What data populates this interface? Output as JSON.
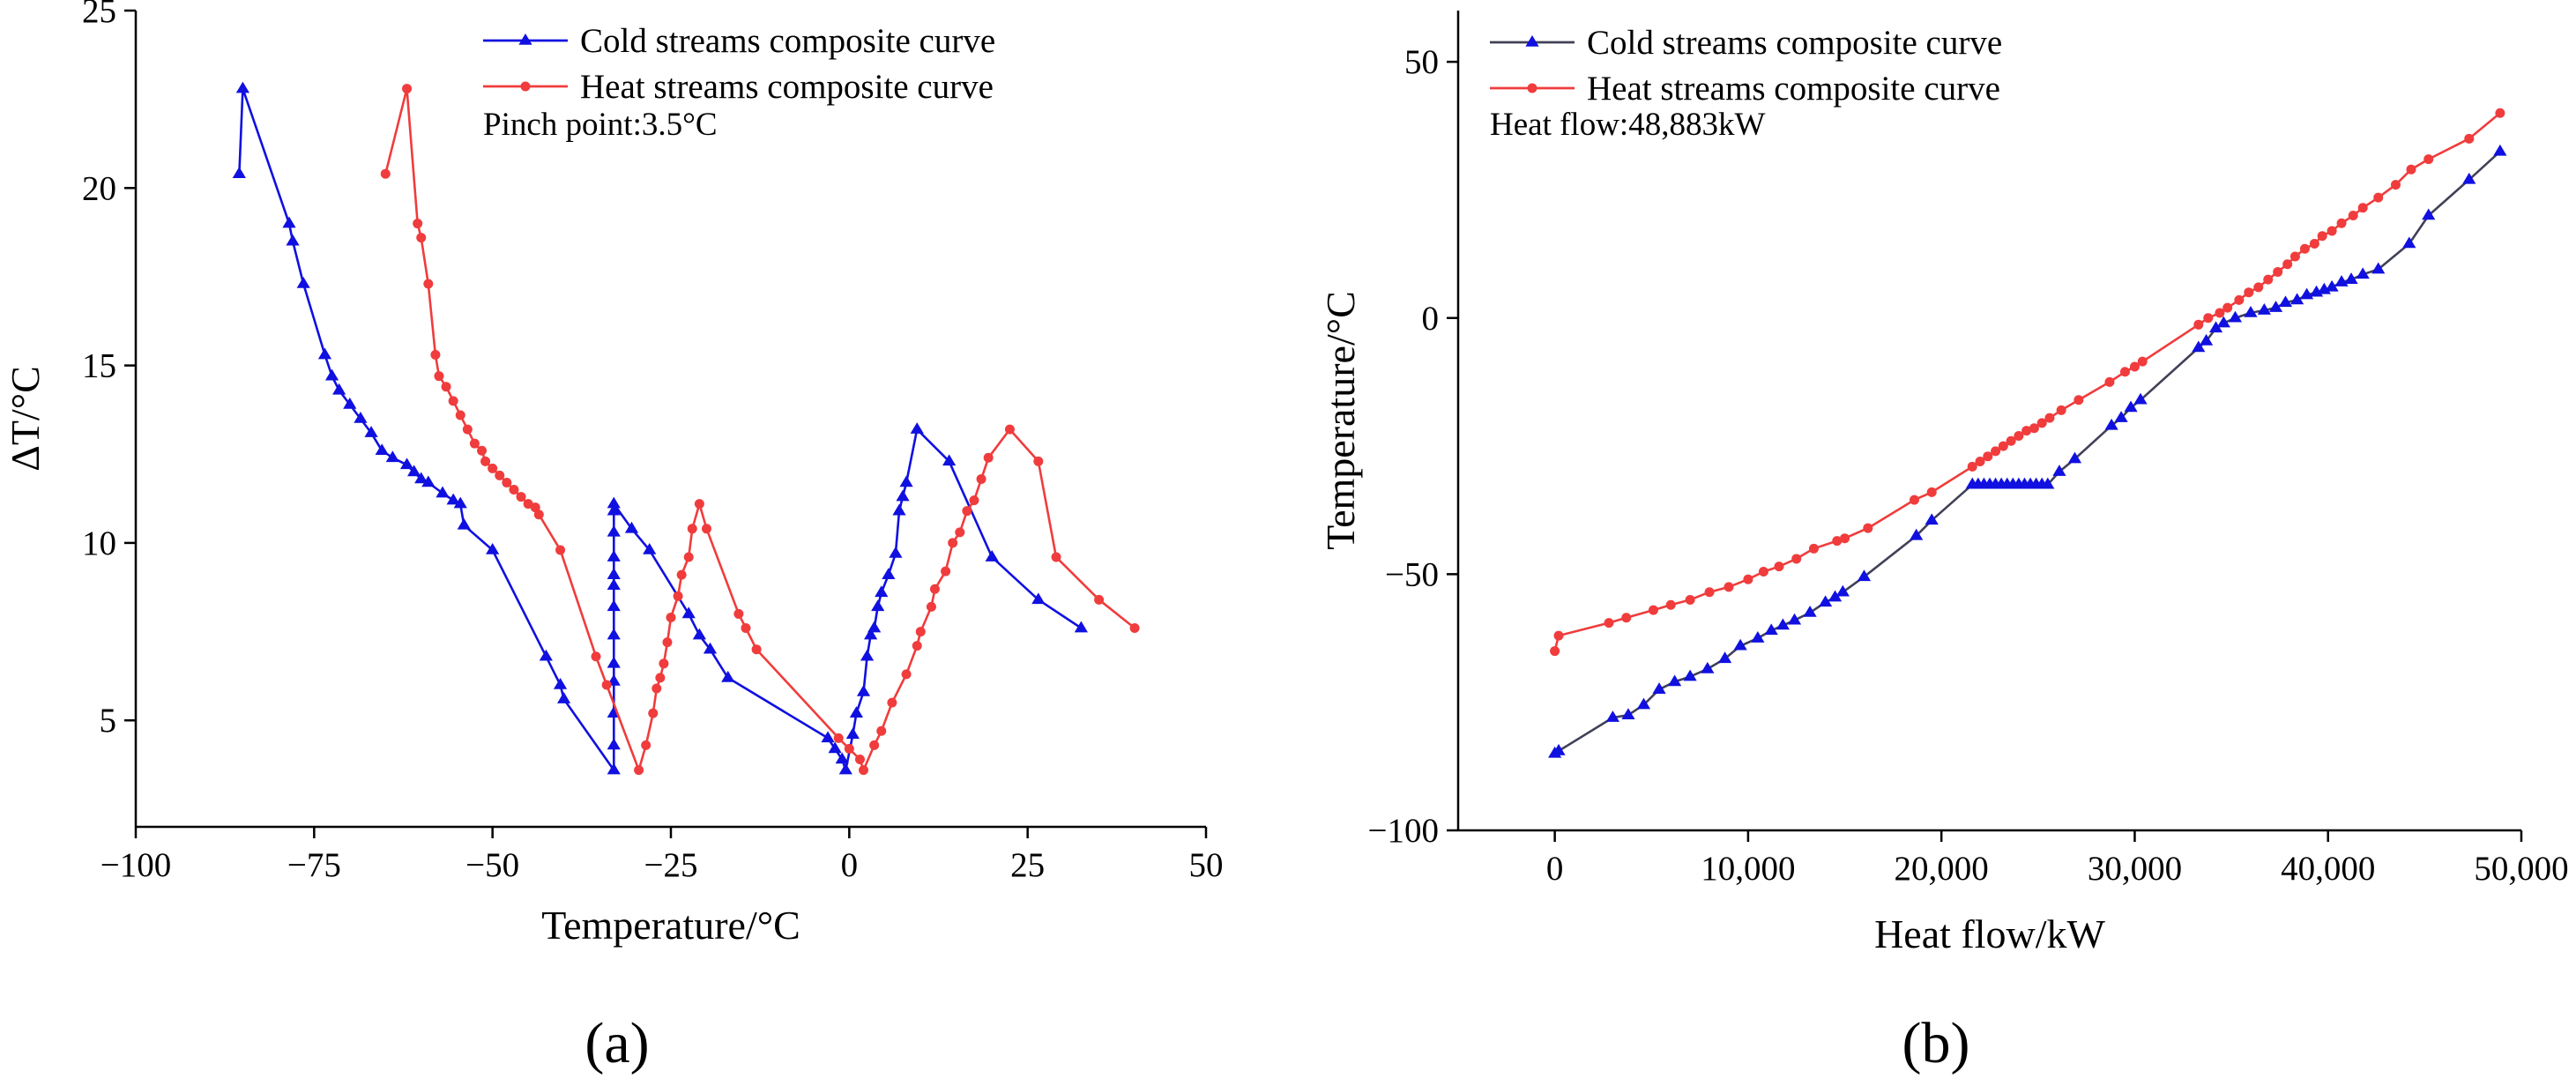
{
  "figure": {
    "label_a": "(a)",
    "label_b": "(b)"
  },
  "colors": {
    "cold": "#1010e0",
    "heat": "#f03c3c",
    "cold_b_line": "#404058"
  },
  "chart_data": [
    {
      "id": "a",
      "type": "line",
      "xlabel": "Temperature/°C",
      "ylabel": "ΔT/°C",
      "xlim": [
        -100,
        50
      ],
      "ylim": [
        2,
        25
      ],
      "xticks": [
        -100,
        -75,
        -50,
        -25,
        0,
        25,
        50
      ],
      "xtick_labels": [
        "−100",
        "−75",
        "−50",
        "−25",
        "0",
        "25",
        "50"
      ],
      "yticks": [
        5,
        10,
        15,
        20,
        25
      ],
      "ytick_labels": [
        "5",
        "10",
        "15",
        "20",
        "25"
      ],
      "legend": "top-center",
      "annotation": "Pinch point:3.5°C",
      "series": [
        {
          "name": "Cold streams composite curve",
          "marker": "triangle",
          "color": "#1010e0",
          "x": [
            -85.5,
            -85,
            -78.5,
            -78,
            -76.5,
            -73.5,
            -72.5,
            -71.5,
            -70,
            -68.5,
            -67,
            -65.5,
            -64,
            -62,
            -61,
            -60,
            -59,
            -57,
            -55.5,
            -54.5,
            -54,
            -50,
            -42.5,
            -40.5,
            -40,
            -33,
            -33,
            -33,
            -33,
            -33,
            -33,
            -33,
            -33,
            -33,
            -33,
            -33,
            -33,
            -33,
            -30.5,
            -28,
            -22.5,
            -21,
            -19.5,
            -17,
            -3,
            -2,
            -1,
            -0.5,
            0.5,
            1,
            2,
            2.5,
            3,
            3.5,
            4,
            4.5,
            5.5,
            6.5,
            7,
            7.5,
            8,
            9.5,
            14,
            20,
            26.5,
            32.5
          ],
          "y": [
            20.4,
            22.8,
            19,
            18.5,
            17.3,
            15.3,
            14.7,
            14.3,
            13.9,
            13.5,
            13.1,
            12.6,
            12.4,
            12.2,
            12,
            11.8,
            11.7,
            11.4,
            11.2,
            11.1,
            10.5,
            9.8,
            6.8,
            6,
            5.6,
            3.6,
            4.3,
            5.2,
            6.1,
            6.6,
            7.4,
            8.2,
            8.8,
            9.1,
            9.6,
            10.3,
            10.9,
            11.1,
            10.4,
            9.8,
            8,
            7.4,
            7,
            6.2,
            4.5,
            4.2,
            3.9,
            3.6,
            4.6,
            5.2,
            5.8,
            6.8,
            7.4,
            7.6,
            8.2,
            8.6,
            9.1,
            9.7,
            10.9,
            11.3,
            11.7,
            13.2,
            12.3,
            9.6,
            8.4,
            7.6
          ]
        },
        {
          "name": "Heat streams composite curve",
          "marker": "circle",
          "color": "#f03c3c",
          "x": [
            -65,
            -62,
            -60.5,
            -60,
            -59,
            -58,
            -57.5,
            -56.5,
            -55.5,
            -54.5,
            -53.5,
            -52.5,
            -51.5,
            -51,
            -50,
            -49,
            -48,
            -47,
            -46,
            -45,
            -44,
            -43.5,
            -40.5,
            -35.5,
            -34,
            -29.5,
            -28.5,
            -27.5,
            -27,
            -26.5,
            -26,
            -25.5,
            -25,
            -24,
            -23.5,
            -22.5,
            -22,
            -21,
            -20,
            -15.5,
            -14.5,
            -13,
            -1.5,
            0,
            1.5,
            2,
            3.5,
            4.5,
            6,
            8,
            9.5,
            10,
            11.5,
            12,
            13.5,
            14.5,
            15.5,
            16.5,
            17.5,
            18.5,
            19.5,
            22.5,
            26.5,
            29,
            35,
            40
          ],
          "y": [
            20.4,
            22.8,
            19,
            18.6,
            17.3,
            15.3,
            14.7,
            14.4,
            14,
            13.6,
            13.2,
            12.8,
            12.6,
            12.3,
            12.1,
            11.9,
            11.7,
            11.5,
            11.3,
            11.1,
            11,
            10.8,
            9.8,
            6.8,
            6,
            3.6,
            4.3,
            5.2,
            5.9,
            6.2,
            6.6,
            7.2,
            7.9,
            8.5,
            9.1,
            9.6,
            10.4,
            11.1,
            10.4,
            8,
            7.6,
            7,
            4.5,
            4.2,
            3.9,
            3.6,
            4.3,
            4.7,
            5.5,
            6.3,
            7.1,
            7.5,
            8.2,
            8.7,
            9.2,
            10,
            10.3,
            10.9,
            11.2,
            11.8,
            12.4,
            13.2,
            12.3,
            9.6,
            8.4,
            7.6
          ]
        }
      ]
    },
    {
      "id": "b",
      "type": "line",
      "xlabel": "Heat flow/kW",
      "ylabel": "Temperature/°C",
      "xlim": [
        -5000,
        50000
      ],
      "ylim": [
        -100,
        60
      ],
      "xticks": [
        0,
        10000,
        20000,
        30000,
        40000,
        50000
      ],
      "xtick_labels": [
        "0",
        "10,000",
        "20,000",
        "30,000",
        "40,000",
        "50,000"
      ],
      "yticks": [
        -100,
        -50,
        0,
        50
      ],
      "ytick_labels": [
        "−100",
        "−50",
        "0",
        "50"
      ],
      "legend": "top-left",
      "annotation": "Heat flow:48,883kW",
      "series": [
        {
          "name": "Cold streams composite curve",
          "marker": "triangle",
          "color": "#1010e0",
          "line_color": "#404058",
          "x": [
            0,
            200,
            3000,
            3800,
            4600,
            5400,
            6200,
            7000,
            7900,
            8800,
            9600,
            10500,
            11200,
            11800,
            12400,
            13200,
            14000,
            14500,
            14900,
            16000,
            18700,
            19500,
            21600,
            21900,
            22200,
            22500,
            22800,
            23100,
            23400,
            23700,
            24000,
            24300,
            24600,
            24900,
            25200,
            25500,
            26100,
            26900,
            28800,
            29300,
            29800,
            30300,
            33300,
            33700,
            34200,
            34600,
            35200,
            36000,
            36700,
            37300,
            37800,
            38400,
            38900,
            39400,
            39800,
            40200,
            40700,
            41200,
            41800,
            42600,
            44200,
            45200,
            47300,
            48900
          ],
          "y": [
            -85,
            -84.5,
            -78,
            -77.5,
            -75.5,
            -72.5,
            -71,
            -70,
            -68.5,
            -66.5,
            -64,
            -62.5,
            -61,
            -60,
            -59,
            -57.5,
            -55.5,
            -54.5,
            -53.5,
            -50.5,
            -42.5,
            -39.5,
            -32.5,
            -32.5,
            -32.5,
            -32.5,
            -32.5,
            -32.5,
            -32.5,
            -32.5,
            -32.5,
            -32.5,
            -32.5,
            -32.5,
            -32.5,
            -32.5,
            -30,
            -27.5,
            -21,
            -19.5,
            -17.5,
            -16,
            -5.8,
            -4.5,
            -2,
            -1,
            0,
            1,
            1.5,
            2,
            3,
            3.5,
            4.5,
            5,
            5.5,
            6,
            7,
            7.5,
            8.5,
            9.5,
            14.5,
            20,
            27,
            32.5
          ]
        },
        {
          "name": "Heat streams composite curve",
          "marker": "circle",
          "color": "#f03c3c",
          "line_color": "#f03c3c",
          "x": [
            0,
            200,
            2800,
            3700,
            5100,
            6000,
            7000,
            8000,
            9000,
            10000,
            10800,
            11600,
            12500,
            13400,
            14600,
            15000,
            16200,
            18600,
            19500,
            21600,
            22000,
            22400,
            22800,
            23200,
            23600,
            24000,
            24400,
            24800,
            25200,
            25600,
            26200,
            27100,
            28700,
            29500,
            30000,
            30400,
            33300,
            33800,
            34400,
            34800,
            35400,
            35900,
            36400,
            36900,
            37400,
            37900,
            38300,
            38800,
            39300,
            39700,
            40200,
            40700,
            41300,
            41800,
            42600,
            43500,
            44300,
            45200,
            47300,
            48900
          ],
          "y": [
            -65,
            -62,
            -59.5,
            -58.5,
            -57,
            -56,
            -55,
            -53.5,
            -52.5,
            -51,
            -49.5,
            -48.5,
            -47,
            -45,
            -43.5,
            -43,
            -41,
            -35.5,
            -34,
            -29,
            -28,
            -27,
            -26,
            -25,
            -24,
            -23,
            -22,
            -21.5,
            -20.5,
            -19.5,
            -18,
            -16,
            -12.5,
            -10.5,
            -9.5,
            -8.5,
            -1.3,
            0,
            1,
            2,
            3.5,
            5,
            6,
            7.5,
            9,
            10.5,
            12,
            13.5,
            14.5,
            16,
            17,
            18.5,
            20,
            21.5,
            23.5,
            26,
            29,
            31,
            35,
            40
          ]
        }
      ]
    }
  ]
}
